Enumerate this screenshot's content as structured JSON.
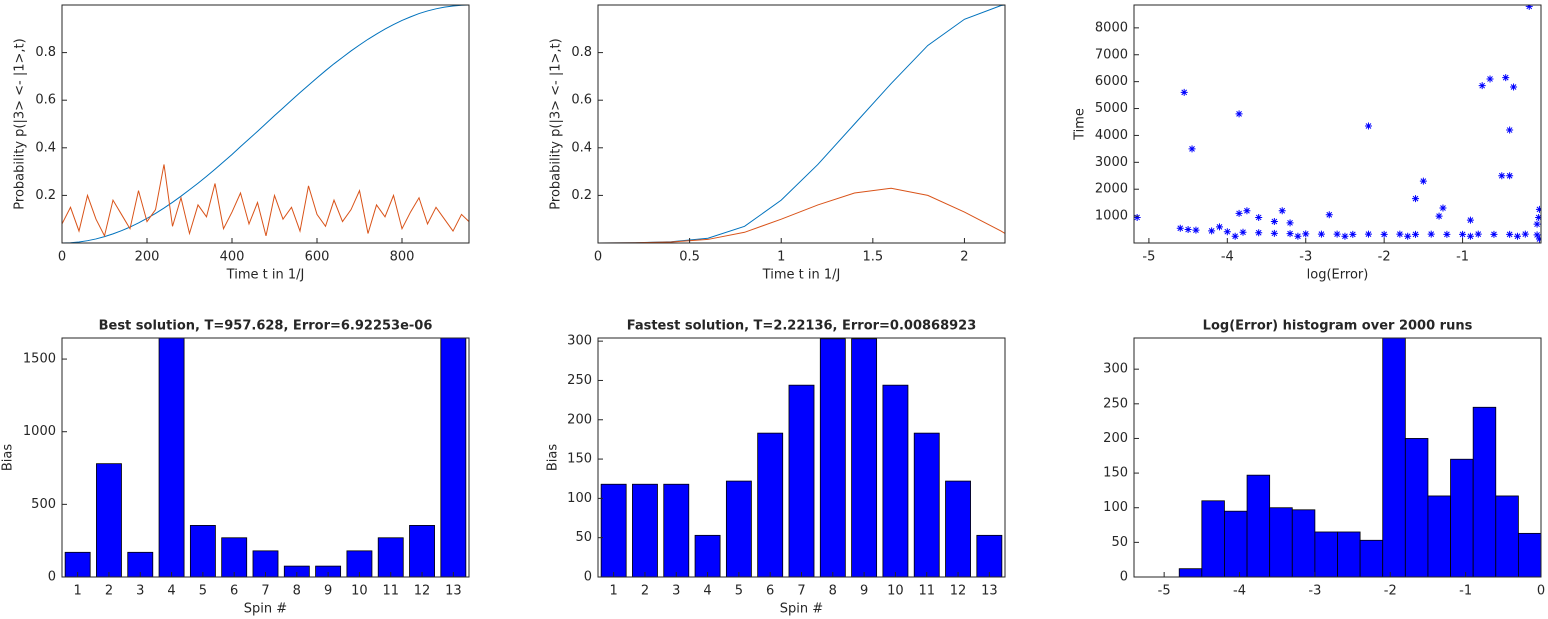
{
  "chart_data": [
    {
      "type": "line",
      "xlabel": "Time t in 1/J",
      "ylabel": "Probability p(|3> <- |1>,t)",
      "x": [
        0,
        20,
        40,
        60,
        80,
        100,
        120,
        140,
        160,
        180,
        200,
        220,
        240,
        260,
        280,
        300,
        320,
        340,
        360,
        380,
        400,
        420,
        440,
        460,
        480,
        500,
        520,
        540,
        560,
        580,
        600,
        620,
        640,
        660,
        680,
        700,
        720,
        740,
        760,
        780,
        800,
        820,
        840,
        860,
        880,
        900,
        920,
        940,
        957.628
      ],
      "series": [
        {
          "color": "#0072bd",
          "values": [
            0,
            0.0011,
            0.0043,
            0.0097,
            0.0171,
            0.0267,
            0.0383,
            0.0517,
            0.0671,
            0.0843,
            0.1035,
            0.1243,
            0.1468,
            0.1709,
            0.1966,
            0.2236,
            0.251,
            0.28,
            0.31,
            0.341,
            0.372,
            0.405,
            0.437,
            0.469,
            0.502,
            0.535,
            0.567,
            0.6,
            0.632,
            0.663,
            0.694,
            0.724,
            0.753,
            0.78,
            0.807,
            0.832,
            0.856,
            0.878,
            0.899,
            0.918,
            0.935,
            0.95,
            0.964,
            0.975,
            0.984,
            0.991,
            0.996,
            0.999,
            1
          ]
        },
        {
          "color": "#d95319",
          "values": [
            0.08,
            0.15,
            0.05,
            0.2,
            0.1,
            0.03,
            0.18,
            0.12,
            0.06,
            0.22,
            0.09,
            0.14,
            0.33,
            0.07,
            0.19,
            0.04,
            0.16,
            0.11,
            0.25,
            0.06,
            0.13,
            0.21,
            0.08,
            0.17,
            0.03,
            0.2,
            0.1,
            0.15,
            0.05,
            0.24,
            0.12,
            0.07,
            0.18,
            0.09,
            0.14,
            0.22,
            0.04,
            0.16,
            0.11,
            0.2,
            0.06,
            0.13,
            0.19,
            0.08,
            0.15,
            0.1,
            0.05,
            0.12,
            0.09
          ]
        }
      ],
      "xlim": [
        0,
        957.628
      ],
      "xticks": [
        0,
        200,
        400,
        600,
        800
      ],
      "ylim": [
        0,
        1
      ],
      "yticks": [
        0.2,
        0.4,
        0.6,
        0.8
      ]
    },
    {
      "type": "line",
      "xlabel": "Time t in 1/J",
      "ylabel": "Probability p(|3> <- |1>,t)",
      "x": [
        0,
        0.2,
        0.4,
        0.6,
        0.8,
        1.0,
        1.2,
        1.4,
        1.6,
        1.8,
        2.0,
        2.2,
        2.22136
      ],
      "series": [
        {
          "color": "#0072bd",
          "values": [
            0,
            0.001,
            0.005,
            0.02,
            0.07,
            0.18,
            0.33,
            0.5,
            0.67,
            0.83,
            0.94,
            0.998,
            1.0
          ]
        },
        {
          "color": "#d95319",
          "values": [
            0,
            0.001,
            0.004,
            0.015,
            0.045,
            0.1,
            0.16,
            0.21,
            0.23,
            0.2,
            0.13,
            0.05,
            0.04
          ]
        }
      ],
      "xlim": [
        0,
        2.22136
      ],
      "xticks": [
        0,
        0.5,
        1,
        1.5,
        2
      ],
      "ylim": [
        0,
        1
      ],
      "yticks": [
        0.2,
        0.4,
        0.6,
        0.8
      ]
    },
    {
      "type": "scatter",
      "xlabel": "log(Error)",
      "ylabel": "Time",
      "color": "#0000ff",
      "x": [
        -5.15,
        -4.55,
        -4.45,
        -3.85,
        -3.85,
        -3.75,
        -3.6,
        -3.3,
        -3.4,
        -3.2,
        -2.7,
        -2.2,
        -1.6,
        -1.5,
        -1.3,
        -1.25,
        -0.9,
        -0.75,
        -0.65,
        -0.45,
        -0.5,
        -0.4,
        -0.4,
        -0.35,
        -0.15,
        -0.02,
        -0.03,
        -0.05,
        -4.6,
        -4.5,
        -4.4,
        -4.2,
        -4.0,
        -3.8,
        -3.6,
        -3.4,
        -3.2,
        -3.0,
        -2.8,
        -2.6,
        -2.4,
        -2.2,
        -2.0,
        -1.8,
        -1.6,
        -1.4,
        -1.2,
        -1.0,
        -0.8,
        -0.6,
        -0.4,
        -0.2,
        -0.05,
        -0.02,
        -3.9,
        -3.1,
        -2.5,
        -1.7,
        -0.9,
        -0.3,
        -4.1
      ],
      "y": [
        950,
        5600,
        3500,
        4800,
        1100,
        1200,
        950,
        1200,
        800,
        750,
        1050,
        4350,
        1650,
        2300,
        1000,
        1300,
        850,
        5850,
        6100,
        6150,
        2500,
        2500,
        4200,
        5800,
        8800,
        1250,
        950,
        700,
        550,
        500,
        480,
        450,
        420,
        400,
        380,
        360,
        350,
        340,
        330,
        330,
        320,
        330,
        320,
        330,
        320,
        330,
        320,
        320,
        330,
        320,
        320,
        330,
        300,
        150,
        250,
        250,
        250,
        250,
        250,
        250,
        600
      ],
      "xlim": [
        -5.19,
        0
      ],
      "xticks": [
        -5,
        -4,
        -3,
        -2,
        -1
      ],
      "ylim": [
        0,
        8850
      ],
      "yticks": [
        1000,
        2000,
        3000,
        4000,
        5000,
        6000,
        7000,
        8000
      ]
    },
    {
      "type": "bar",
      "title": "Best solution, T=957.628, Error=6.92253e-06",
      "xlabel": "Spin #",
      "ylabel": "Bias",
      "color": "#0000ff",
      "categories": [
        1,
        2,
        3,
        4,
        5,
        6,
        7,
        8,
        9,
        10,
        11,
        12,
        13
      ],
      "values": [
        170,
        780,
        170,
        1645,
        355,
        270,
        180,
        75,
        75,
        180,
        270,
        355,
        1645
      ],
      "ylim": [
        0,
        1645
      ],
      "yticks": [
        0,
        500,
        1000,
        1500
      ]
    },
    {
      "type": "bar",
      "title": "Fastest solution, T=2.22136, Error=0.00868923",
      "xlabel": "Spin #",
      "ylabel": "Bias",
      "color": "#0000ff",
      "categories": [
        1,
        2,
        3,
        4,
        5,
        6,
        7,
        8,
        9,
        10,
        11,
        12,
        13
      ],
      "values": [
        118,
        118,
        118,
        53,
        122,
        183,
        244,
        303,
        303,
        244,
        183,
        122,
        53
      ],
      "ylim": [
        0,
        304
      ],
      "yticks": [
        0,
        50,
        100,
        150,
        200,
        250,
        300
      ]
    },
    {
      "type": "histogram",
      "title": "Log(Error) histogram over 2000 runs",
      "color": "#0000ff",
      "bins": [
        -4.8,
        -4.5,
        -4.2,
        -3.9,
        -3.6,
        -3.3,
        -3,
        -2.7,
        -2.4,
        -2.1,
        -1.8,
        -1.5,
        -1.2,
        -0.9,
        -0.6,
        -0.3,
        0
      ],
      "values": [
        12,
        110,
        95,
        147,
        100,
        97,
        65,
        65,
        53,
        345,
        200,
        117,
        170,
        245,
        117,
        63
      ],
      "xlim": [
        -5.4,
        0
      ],
      "xticks": [
        -5,
        -4,
        -3,
        -2,
        -1,
        0
      ],
      "ylim": [
        0,
        345
      ],
      "yticks": [
        0,
        50,
        100,
        150,
        200,
        250,
        300
      ]
    }
  ]
}
